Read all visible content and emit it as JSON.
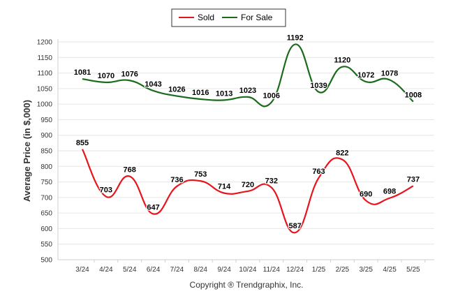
{
  "chart_data": {
    "type": "line",
    "categories": [
      "3/24",
      "4/24",
      "5/24",
      "6/24",
      "7/24",
      "8/24",
      "9/24",
      "10/24",
      "11/24",
      "12/24",
      "1/25",
      "2/25",
      "3/25",
      "4/25",
      "5/25"
    ],
    "series": [
      {
        "name": "Sold",
        "color": "#e8141b",
        "values": [
          855,
          703,
          768,
          647,
          736,
          753,
          714,
          720,
          732,
          587,
          763,
          822,
          690,
          698,
          737
        ]
      },
      {
        "name": "For Sale",
        "color": "#1a6b1a",
        "values": [
          1081,
          1070,
          1076,
          1043,
          1026,
          1016,
          1013,
          1023,
          1006,
          1192,
          1039,
          1120,
          1072,
          1078,
          1008
        ]
      }
    ],
    "ylabel": "Average Price (in $,000)",
    "xlabel": "",
    "ylim": [
      500,
      1200
    ],
    "yticks": [
      500,
      550,
      600,
      650,
      700,
      750,
      800,
      850,
      900,
      950,
      1000,
      1050,
      1100,
      1150,
      1200
    ],
    "grid": true,
    "legend_position": "top-center",
    "footer": "Copyright ® Trendgraphix, Inc."
  }
}
